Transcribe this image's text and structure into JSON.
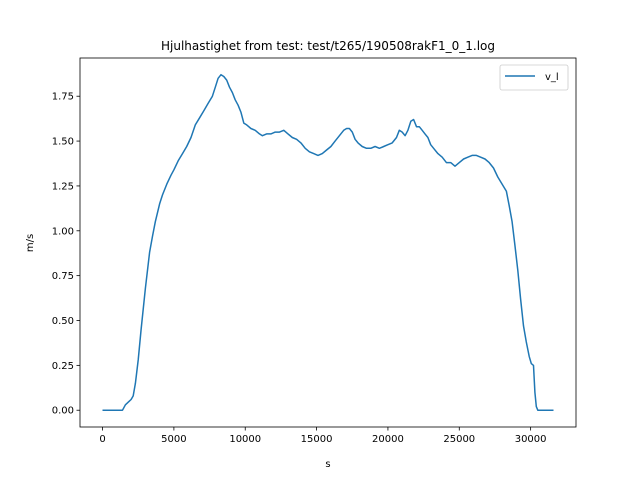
{
  "chart_data": {
    "type": "line",
    "title": "Hjulhastighet from test: test/t265/190508rakF1_0_1.log",
    "xlabel": "s",
    "ylabel": "m/s",
    "xlim": [
      -1580,
      33180
    ],
    "ylim": [
      -0.0935,
      1.963
    ],
    "xticks": [
      0,
      5000,
      10000,
      15000,
      20000,
      25000,
      30000
    ],
    "xtick_labels": [
      "0",
      "5000",
      "10000",
      "15000",
      "20000",
      "25000",
      "30000"
    ],
    "yticks": [
      0.0,
      0.25,
      0.5,
      0.75,
      1.0,
      1.25,
      1.5,
      1.75
    ],
    "ytick_labels": [
      "0.00",
      "0.25",
      "0.50",
      "0.75",
      "1.00",
      "1.25",
      "1.50",
      "1.75"
    ],
    "grid": false,
    "legend_position": "top-right",
    "series": [
      {
        "name": "v_l",
        "color": "#1f77b4",
        "x": [
          0,
          1400,
          1600,
          2000,
          2150,
          2300,
          2500,
          2700,
          3000,
          3300,
          3500,
          3700,
          4000,
          4200,
          4500,
          4800,
          5000,
          5300,
          5600,
          5900,
          6200,
          6500,
          6800,
          7100,
          7400,
          7700,
          7900,
          8100,
          8300,
          8500,
          8700,
          8900,
          9100,
          9300,
          9500,
          9700,
          9900,
          10100,
          10400,
          10700,
          11000,
          11200,
          11500,
          11800,
          12100,
          12400,
          12700,
          13000,
          13300,
          13600,
          13900,
          14200,
          14500,
          14800,
          15100,
          15400,
          15700,
          16000,
          16300,
          16600,
          16900,
          17100,
          17300,
          17500,
          17700,
          17900,
          18200,
          18500,
          18800,
          19100,
          19400,
          19700,
          20000,
          20300,
          20600,
          20800,
          21000,
          21200,
          21400,
          21600,
          21800,
          22000,
          22200,
          22400,
          22600,
          22800,
          23000,
          23200,
          23500,
          23800,
          24100,
          24400,
          24700,
          25000,
          25300,
          25600,
          25900,
          26200,
          26500,
          26800,
          27100,
          27400,
          27700,
          28000,
          28300,
          28500,
          28700,
          28900,
          29100,
          29300,
          29500,
          29700,
          29900,
          30050,
          30200,
          30300,
          30400,
          30500,
          30600,
          30800,
          30900,
          31000,
          31200,
          31600
        ],
        "y": [
          0.0,
          0.0,
          0.03,
          0.06,
          0.08,
          0.15,
          0.28,
          0.45,
          0.68,
          0.88,
          0.97,
          1.05,
          1.15,
          1.2,
          1.26,
          1.31,
          1.34,
          1.39,
          1.43,
          1.47,
          1.52,
          1.59,
          1.63,
          1.67,
          1.71,
          1.75,
          1.8,
          1.85,
          1.87,
          1.86,
          1.84,
          1.8,
          1.77,
          1.73,
          1.7,
          1.66,
          1.6,
          1.59,
          1.57,
          1.56,
          1.54,
          1.53,
          1.54,
          1.54,
          1.55,
          1.55,
          1.56,
          1.54,
          1.52,
          1.51,
          1.49,
          1.46,
          1.44,
          1.43,
          1.42,
          1.43,
          1.45,
          1.47,
          1.5,
          1.53,
          1.56,
          1.57,
          1.57,
          1.55,
          1.51,
          1.49,
          1.47,
          1.46,
          1.46,
          1.47,
          1.46,
          1.47,
          1.48,
          1.49,
          1.52,
          1.56,
          1.55,
          1.53,
          1.56,
          1.61,
          1.62,
          1.58,
          1.58,
          1.56,
          1.54,
          1.52,
          1.48,
          1.46,
          1.43,
          1.41,
          1.38,
          1.38,
          1.36,
          1.38,
          1.4,
          1.41,
          1.42,
          1.42,
          1.41,
          1.4,
          1.38,
          1.35,
          1.3,
          1.26,
          1.22,
          1.14,
          1.05,
          0.92,
          0.78,
          0.62,
          0.47,
          0.38,
          0.3,
          0.26,
          0.25,
          0.1,
          0.02,
          0.0,
          0.0,
          0.0,
          0.0,
          0.0,
          0.0,
          0.0
        ]
      }
    ]
  }
}
